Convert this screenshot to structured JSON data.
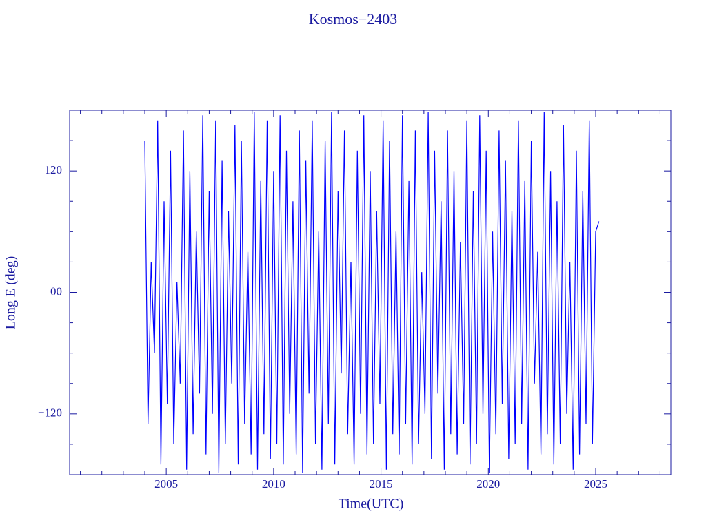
{
  "chart_data": {
    "type": "line",
    "title": "Kosmos−2403",
    "xlabel": "Time(UTC)",
    "ylabel": "Long E (deg)",
    "xlim": [
      2000.5,
      2028.5
    ],
    "ylim": [
      -180,
      180
    ],
    "xticks": [
      2005,
      2010,
      2015,
      2020,
      2025
    ],
    "xminorticks": [
      2001,
      2002,
      2003,
      2004,
      2006,
      2007,
      2008,
      2009,
      2011,
      2012,
      2013,
      2014,
      2016,
      2017,
      2018,
      2019,
      2021,
      2022,
      2023,
      2024,
      2026,
      2027,
      2028
    ],
    "yticks": [
      {
        "value": -120,
        "label": "−120"
      },
      {
        "value": 0,
        "label": "00"
      },
      120
    ],
    "yminorticks": [
      -150,
      -90,
      -60,
      -30,
      30,
      60,
      90,
      150
    ],
    "grid": false,
    "series": [
      {
        "color": "#0000ff",
        "x": [
          2004.0,
          2004.15,
          2004.3,
          2004.45,
          2004.6,
          2004.75,
          2004.9,
          2005.05,
          2005.2,
          2005.35,
          2005.5,
          2005.65,
          2005.8,
          2005.95,
          2006.1,
          2006.25,
          2006.4,
          2006.55,
          2006.7,
          2006.85,
          2007.0,
          2007.15,
          2007.3,
          2007.45,
          2007.6,
          2007.75,
          2007.9,
          2008.05,
          2008.2,
          2008.35,
          2008.5,
          2008.65,
          2008.8,
          2008.95,
          2009.1,
          2009.25,
          2009.4,
          2009.55,
          2009.7,
          2009.85,
          2010.0,
          2010.15,
          2010.3,
          2010.45,
          2010.6,
          2010.75,
          2010.9,
          2011.05,
          2011.2,
          2011.35,
          2011.5,
          2011.65,
          2011.8,
          2011.95,
          2012.1,
          2012.25,
          2012.4,
          2012.55,
          2012.7,
          2012.85,
          2013.0,
          2013.15,
          2013.3,
          2013.45,
          2013.6,
          2013.75,
          2013.9,
          2014.05,
          2014.2,
          2014.35,
          2014.5,
          2014.65,
          2014.8,
          2014.95,
          2015.1,
          2015.25,
          2015.4,
          2015.55,
          2015.7,
          2015.85,
          2016.0,
          2016.15,
          2016.3,
          2016.45,
          2016.6,
          2016.75,
          2016.9,
          2017.05,
          2017.2,
          2017.35,
          2017.5,
          2017.65,
          2017.8,
          2017.95,
          2018.1,
          2018.25,
          2018.4,
          2018.55,
          2018.7,
          2018.85,
          2019.0,
          2019.15,
          2019.3,
          2019.45,
          2019.6,
          2019.75,
          2019.9,
          2020.05,
          2020.2,
          2020.35,
          2020.5,
          2020.65,
          2020.8,
          2020.95,
          2021.1,
          2021.25,
          2021.4,
          2021.55,
          2021.7,
          2021.85,
          2022.0,
          2022.15,
          2022.3,
          2022.45,
          2022.6,
          2022.75,
          2022.9,
          2023.05,
          2023.2,
          2023.35,
          2023.5,
          2023.65,
          2023.8,
          2023.95,
          2024.1,
          2024.25,
          2024.4,
          2024.55,
          2024.7,
          2024.85,
          2025.0,
          2025.15
        ],
        "values": [
          150,
          -130,
          30,
          -60,
          170,
          -170,
          90,
          -110,
          140,
          -150,
          10,
          -90,
          160,
          -175,
          120,
          -140,
          60,
          -100,
          175,
          -160,
          100,
          -120,
          170,
          -178,
          130,
          -150,
          80,
          -90,
          165,
          -170,
          150,
          -130,
          40,
          -160,
          178,
          -175,
          110,
          -140,
          170,
          -165,
          120,
          -150,
          175,
          -170,
          140,
          -120,
          90,
          -160,
          160,
          -178,
          130,
          -100,
          170,
          -150,
          60,
          -175,
          150,
          -130,
          178,
          -170,
          100,
          -80,
          160,
          -140,
          30,
          -170,
          140,
          -120,
          175,
          -160,
          120,
          -150,
          80,
          -110,
          170,
          -175,
          150,
          -140,
          60,
          -160,
          175,
          -130,
          110,
          -170,
          160,
          -150,
          20,
          -120,
          178,
          -165,
          140,
          -100,
          90,
          -175,
          160,
          -140,
          120,
          -160,
          50,
          -130,
          170,
          -170,
          100,
          -150,
          175,
          -120,
          140,
          -178,
          60,
          -140,
          160,
          -110,
          130,
          -165,
          80,
          -150,
          170,
          -130,
          110,
          -175,
          150,
          -90,
          40,
          -160,
          178,
          -140,
          120,
          -170,
          90,
          -150,
          165,
          -120,
          30,
          -175,
          140,
          -160,
          100,
          -130,
          170,
          -150,
          60,
          70
        ]
      }
    ]
  }
}
